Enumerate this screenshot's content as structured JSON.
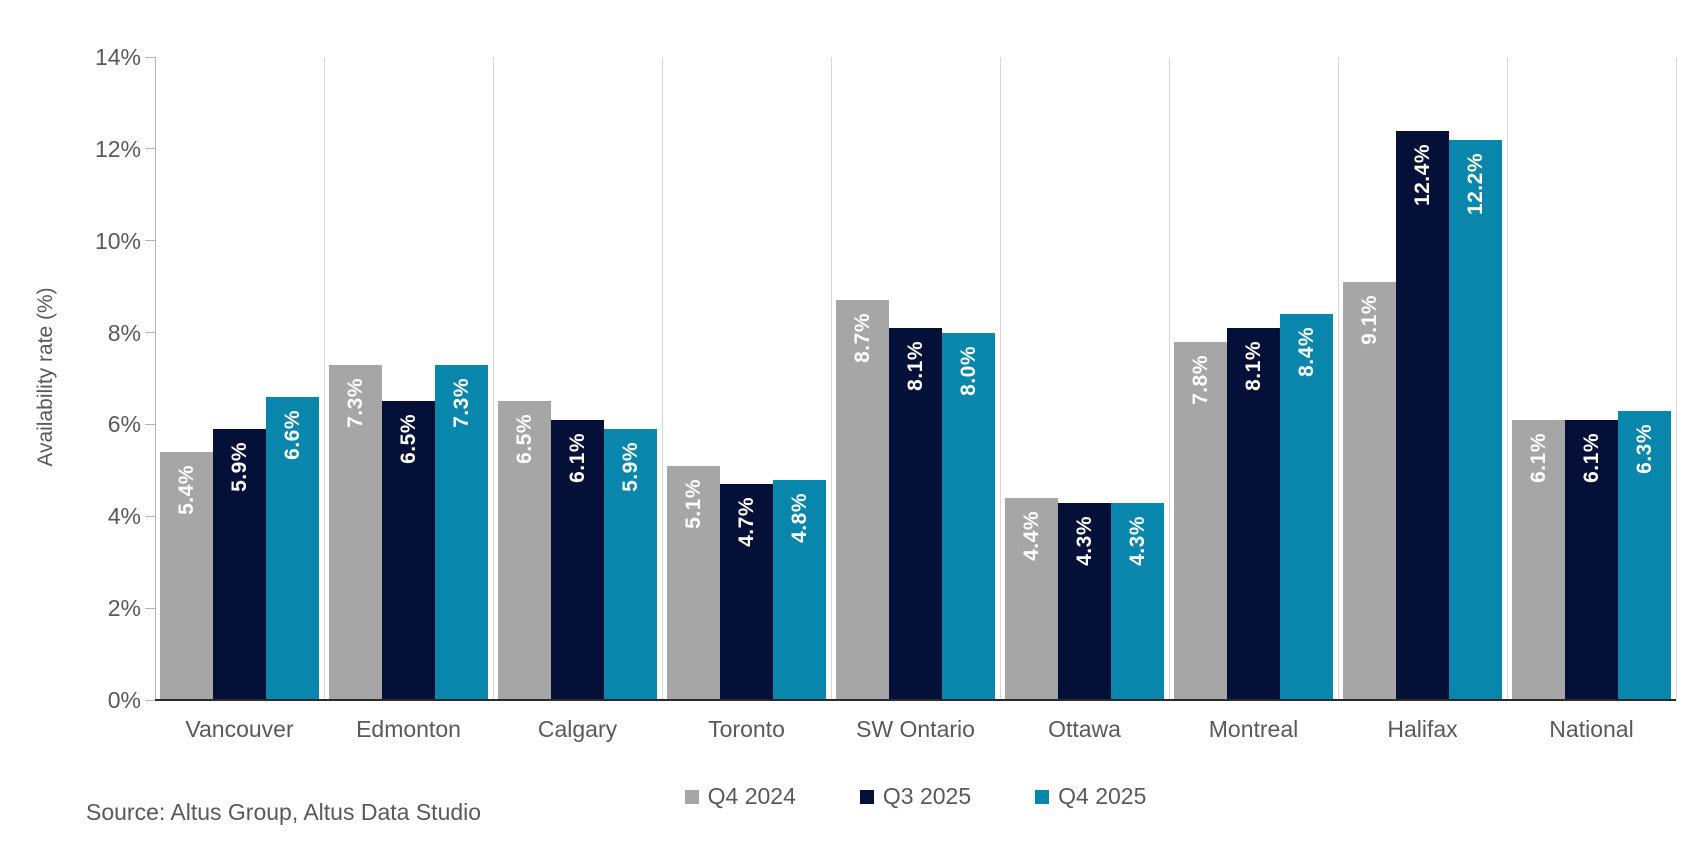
{
  "chart_data": {
    "type": "bar",
    "title": "",
    "ylabel": "Availability rate (%)",
    "xlabel": "",
    "categories": [
      "Vancouver",
      "Edmonton",
      "Calgary",
      "Toronto",
      "SW Ontario",
      "Ottawa",
      "Montreal",
      "Halifax",
      "National"
    ],
    "series": [
      {
        "name": "Q4 2024",
        "color": "#a6a6a6",
        "values": [
          5.4,
          7.3,
          6.5,
          5.1,
          8.7,
          4.4,
          7.8,
          9.1,
          6.1
        ]
      },
      {
        "name": "Q3 2025",
        "color": "#051038",
        "values": [
          5.9,
          6.5,
          6.1,
          4.7,
          8.1,
          4.3,
          8.1,
          12.4,
          6.1
        ]
      },
      {
        "name": "Q4 2025",
        "color": "#0886ab",
        "values": [
          6.6,
          7.3,
          5.9,
          4.8,
          8.0,
          4.3,
          8.4,
          12.2,
          6.3
        ]
      }
    ],
    "ylim": [
      0,
      14
    ],
    "ytick_step": 2,
    "ytick_suffix": "%",
    "value_label_suffix": "%",
    "value_label_decimals": 1,
    "value_label_color": "#ffffff",
    "grid": "vertical-category-boundaries-only",
    "legend_position": "bottom-center"
  },
  "source_note": "Source: Altus Group, Altus Data Studio"
}
